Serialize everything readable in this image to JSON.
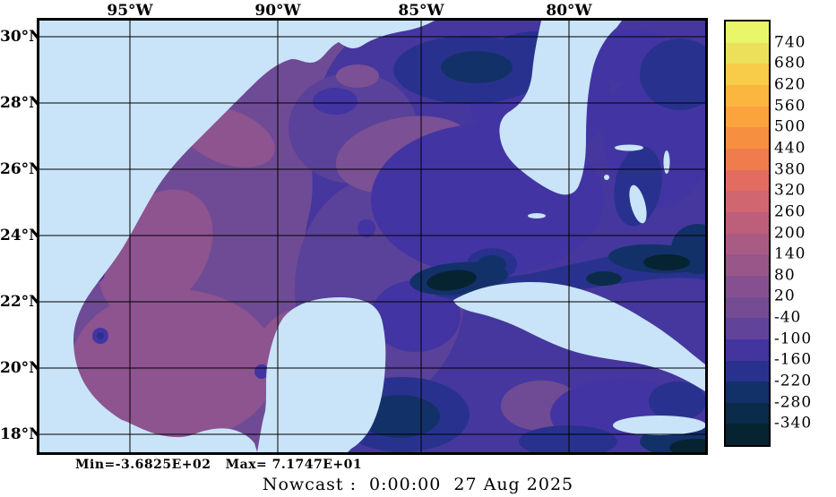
{
  "figure": {
    "title": "Nowcast :  0:00:00  27 Aug 2025",
    "stats": "Min=-3.6825E+02   Max= 7.1747E+01"
  },
  "axes": {
    "lon_labels": [
      "95°W",
      "90°W",
      "85°W",
      "80°W"
    ],
    "lat_labels": [
      "30°N",
      "28°N",
      "26°N",
      "24°N",
      "22°N",
      "20°N",
      "18°N"
    ]
  },
  "colorbar": {
    "tick_labels": [
      "740",
      "680",
      "620",
      "560",
      "500",
      "440",
      "380",
      "320",
      "260",
      "200",
      "140",
      "80",
      "20",
      "-40",
      "-100",
      "-160",
      "-220",
      "-280",
      "-340"
    ],
    "segment_colors_top_to_bottom": [
      "#e9f669",
      "#ece05a",
      "#f8cb49",
      "#fbb63f",
      "#fba43e",
      "#f69040",
      "#f07c4e",
      "#e26c60",
      "#d06670",
      "#bd5f7a",
      "#aa5b84",
      "#985689",
      "#865090",
      "#754b94",
      "#62439a",
      "#44349e",
      "#28328e",
      "#133169",
      "#0a2c4a",
      "#062331"
    ]
  },
  "map_colors": {
    "land": "#c9e4f9",
    "ocean_base": "#46379e",
    "ocean_west": "#6f4b95",
    "ocean_shelf_light": "#8d5490",
    "ocean_mid": "#5a4199",
    "ocean_indigo": "#4334a3",
    "ocean_navy": "#28328e",
    "ocean_deep": "#133169",
    "ocean_deepest": "#062331"
  },
  "chart_data": {
    "type": "heatmap",
    "title": "Nowcast :  0:00:00  27 Aug 2025",
    "x_axis": {
      "tick_labels": [
        "95°W",
        "90°W",
        "85°W",
        "80°W"
      ],
      "approx_range_deg_west": [
        98.1,
        75.4
      ]
    },
    "y_axis": {
      "tick_labels": [
        "30°N",
        "28°N",
        "26°N",
        "24°N",
        "22°N",
        "20°N",
        "18°N"
      ],
      "approx_range_deg_north": [
        17.5,
        30.5
      ]
    },
    "colorbar_scale": {
      "boundary_values": [
        740,
        680,
        620,
        560,
        500,
        440,
        380,
        320,
        260,
        200,
        140,
        80,
        20,
        -40,
        -100,
        -160,
        -220,
        -280,
        -340
      ]
    },
    "field_min": -368.25,
    "field_max": 71.747,
    "grid": "on",
    "legend_position": "right-colorbar"
  }
}
